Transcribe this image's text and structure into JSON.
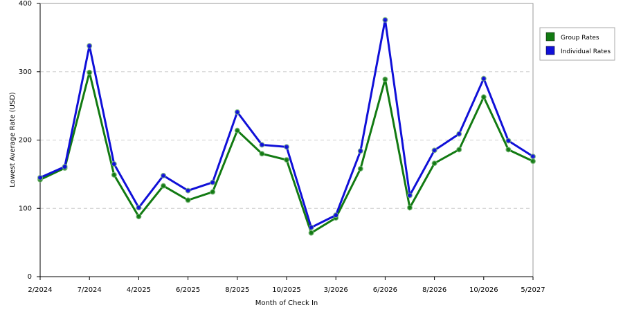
{
  "chart_data": {
    "type": "line",
    "xlabel": "Month of Check In",
    "ylabel": "Lowest Average Rate (USD)",
    "categories": [
      "2/2024",
      null,
      "7/2024",
      null,
      "4/2025",
      null,
      "6/2025",
      null,
      "8/2025",
      null,
      "10/2025",
      null,
      "3/2026",
      null,
      "6/2026",
      null,
      "8/2026",
      null,
      "10/2026",
      null,
      "5/2027"
    ],
    "series": [
      {
        "name": "Group Rates",
        "color": "#127a12",
        "values": [
          142,
          159,
          299,
          149,
          88,
          133,
          112,
          124,
          214,
          180,
          171,
          64,
          86,
          158,
          289,
          101,
          166,
          186,
          263,
          186,
          169
        ]
      },
      {
        "name": "Individual Rates",
        "color": "#1010d8",
        "values": [
          145,
          161,
          338,
          165,
          101,
          148,
          126,
          138,
          241,
          193,
          190,
          72,
          90,
          184,
          376,
          119,
          185,
          209,
          290,
          199,
          176
        ]
      }
    ],
    "ylim": [
      0,
      400
    ],
    "yticks": [
      0,
      100,
      200,
      300,
      400
    ],
    "grid": true,
    "legend": "right"
  }
}
